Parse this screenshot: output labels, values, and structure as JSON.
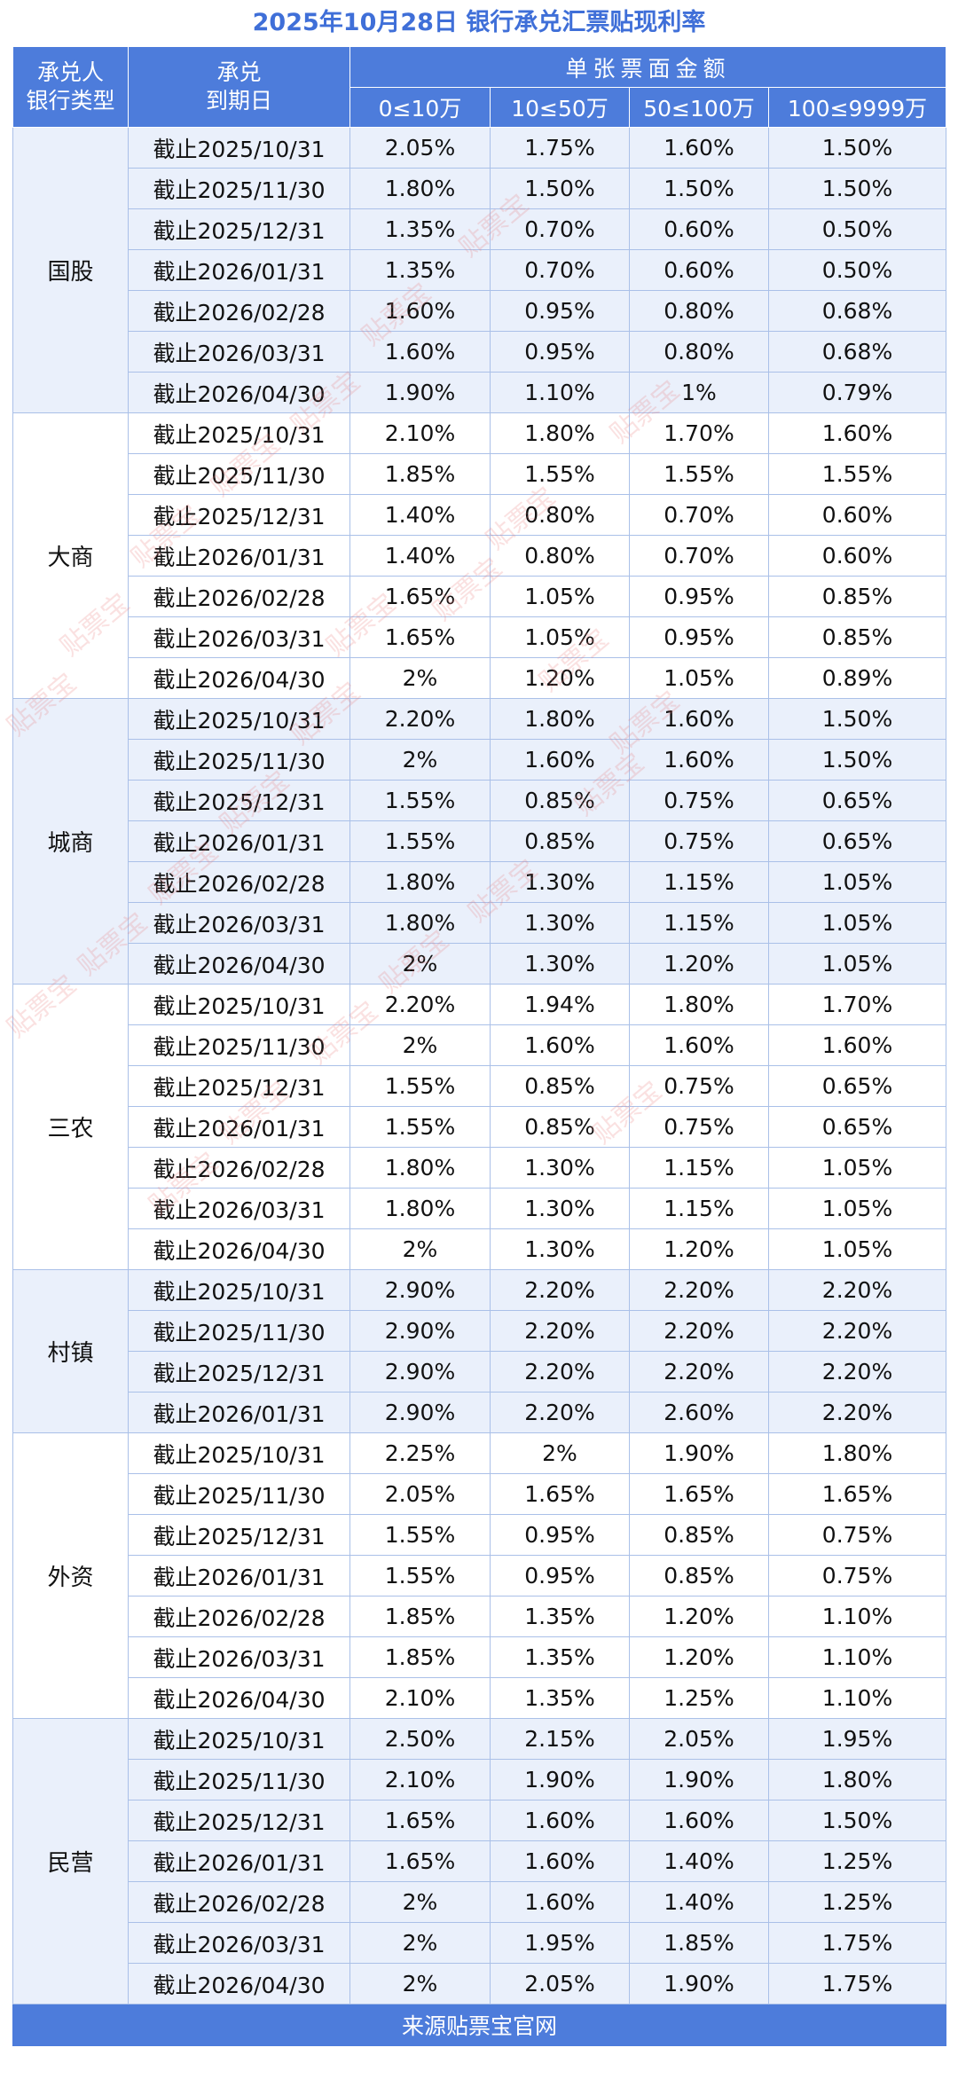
{
  "title": "2025年10月28日 银行承兑汇票贴现利率",
  "header": {
    "col_bank": "承兑人\n银行类型",
    "col_bank_line1": "承兑人",
    "col_bank_line2": "银行类型",
    "col_maturity_line1": "承兑",
    "col_maturity_line2": "到期日",
    "amount_group": "单张票面金额",
    "amount_cols": [
      "0≤10万",
      "10≤50万",
      "50≤100万",
      "100≤9999万"
    ]
  },
  "groups": [
    {
      "bank": "国股",
      "rows": [
        {
          "date": "截止2025/10/31",
          "rates": [
            "2.05%",
            "1.75%",
            "1.60%",
            "1.50%"
          ]
        },
        {
          "date": "截止2025/11/30",
          "rates": [
            "1.80%",
            "1.50%",
            "1.50%",
            "1.50%"
          ]
        },
        {
          "date": "截止2025/12/31",
          "rates": [
            "1.35%",
            "0.70%",
            "0.60%",
            "0.50%"
          ]
        },
        {
          "date": "截止2026/01/31",
          "rates": [
            "1.35%",
            "0.70%",
            "0.60%",
            "0.50%"
          ]
        },
        {
          "date": "截止2026/02/28",
          "rates": [
            "1.60%",
            "0.95%",
            "0.80%",
            "0.68%"
          ]
        },
        {
          "date": "截止2026/03/31",
          "rates": [
            "1.60%",
            "0.95%",
            "0.80%",
            "0.68%"
          ]
        },
        {
          "date": "截止2026/04/30",
          "rates": [
            "1.90%",
            "1.10%",
            "1%",
            "0.79%"
          ]
        }
      ]
    },
    {
      "bank": "大商",
      "rows": [
        {
          "date": "截止2025/10/31",
          "rates": [
            "2.10%",
            "1.80%",
            "1.70%",
            "1.60%"
          ]
        },
        {
          "date": "截止2025/11/30",
          "rates": [
            "1.85%",
            "1.55%",
            "1.55%",
            "1.55%"
          ]
        },
        {
          "date": "截止2025/12/31",
          "rates": [
            "1.40%",
            "0.80%",
            "0.70%",
            "0.60%"
          ]
        },
        {
          "date": "截止2026/01/31",
          "rates": [
            "1.40%",
            "0.80%",
            "0.70%",
            "0.60%"
          ]
        },
        {
          "date": "截止2026/02/28",
          "rates": [
            "1.65%",
            "1.05%",
            "0.95%",
            "0.85%"
          ]
        },
        {
          "date": "截止2026/03/31",
          "rates": [
            "1.65%",
            "1.05%",
            "0.95%",
            "0.85%"
          ]
        },
        {
          "date": "截止2026/04/30",
          "rates": [
            "2%",
            "1.20%",
            "1.05%",
            "0.89%"
          ]
        }
      ]
    },
    {
      "bank": "城商",
      "rows": [
        {
          "date": "截止2025/10/31",
          "rates": [
            "2.20%",
            "1.80%",
            "1.60%",
            "1.50%"
          ]
        },
        {
          "date": "截止2025/11/30",
          "rates": [
            "2%",
            "1.60%",
            "1.60%",
            "1.50%"
          ]
        },
        {
          "date": "截止2025/12/31",
          "rates": [
            "1.55%",
            "0.85%",
            "0.75%",
            "0.65%"
          ]
        },
        {
          "date": "截止2026/01/31",
          "rates": [
            "1.55%",
            "0.85%",
            "0.75%",
            "0.65%"
          ]
        },
        {
          "date": "截止2026/02/28",
          "rates": [
            "1.80%",
            "1.30%",
            "1.15%",
            "1.05%"
          ]
        },
        {
          "date": "截止2026/03/31",
          "rates": [
            "1.80%",
            "1.30%",
            "1.15%",
            "1.05%"
          ]
        },
        {
          "date": "截止2026/04/30",
          "rates": [
            "2%",
            "1.30%",
            "1.20%",
            "1.05%"
          ]
        }
      ]
    },
    {
      "bank": "三农",
      "rows": [
        {
          "date": "截止2025/10/31",
          "rates": [
            "2.20%",
            "1.94%",
            "1.80%",
            "1.70%"
          ]
        },
        {
          "date": "截止2025/11/30",
          "rates": [
            "2%",
            "1.60%",
            "1.60%",
            "1.60%"
          ]
        },
        {
          "date": "截止2025/12/31",
          "rates": [
            "1.55%",
            "0.85%",
            "0.75%",
            "0.65%"
          ]
        },
        {
          "date": "截止2026/01/31",
          "rates": [
            "1.55%",
            "0.85%",
            "0.75%",
            "0.65%"
          ]
        },
        {
          "date": "截止2026/02/28",
          "rates": [
            "1.80%",
            "1.30%",
            "1.15%",
            "1.05%"
          ]
        },
        {
          "date": "截止2026/03/31",
          "rates": [
            "1.80%",
            "1.30%",
            "1.15%",
            "1.05%"
          ]
        },
        {
          "date": "截止2026/04/30",
          "rates": [
            "2%",
            "1.30%",
            "1.20%",
            "1.05%"
          ]
        }
      ]
    },
    {
      "bank": "村镇",
      "rows": [
        {
          "date": "截止2025/10/31",
          "rates": [
            "2.90%",
            "2.20%",
            "2.20%",
            "2.20%"
          ]
        },
        {
          "date": "截止2025/11/30",
          "rates": [
            "2.90%",
            "2.20%",
            "2.20%",
            "2.20%"
          ]
        },
        {
          "date": "截止2025/12/31",
          "rates": [
            "2.90%",
            "2.20%",
            "2.20%",
            "2.20%"
          ]
        },
        {
          "date": "截止2026/01/31",
          "rates": [
            "2.90%",
            "2.20%",
            "2.60%",
            "2.20%"
          ]
        }
      ]
    },
    {
      "bank": "外资",
      "rows": [
        {
          "date": "截止2025/10/31",
          "rates": [
            "2.25%",
            "2%",
            "1.90%",
            "1.80%"
          ]
        },
        {
          "date": "截止2025/11/30",
          "rates": [
            "2.05%",
            "1.65%",
            "1.65%",
            "1.65%"
          ]
        },
        {
          "date": "截止2025/12/31",
          "rates": [
            "1.55%",
            "0.95%",
            "0.85%",
            "0.75%"
          ]
        },
        {
          "date": "截止2026/01/31",
          "rates": [
            "1.55%",
            "0.95%",
            "0.85%",
            "0.75%"
          ]
        },
        {
          "date": "截止2026/02/28",
          "rates": [
            "1.85%",
            "1.35%",
            "1.20%",
            "1.10%"
          ]
        },
        {
          "date": "截止2026/03/31",
          "rates": [
            "1.85%",
            "1.35%",
            "1.20%",
            "1.10%"
          ]
        },
        {
          "date": "截止2026/04/30",
          "rates": [
            "2.10%",
            "1.35%",
            "1.25%",
            "1.10%"
          ]
        }
      ]
    },
    {
      "bank": "民营",
      "rows": [
        {
          "date": "截止2025/10/31",
          "rates": [
            "2.50%",
            "2.15%",
            "2.05%",
            "1.95%"
          ]
        },
        {
          "date": "截止2025/11/30",
          "rates": [
            "2.10%",
            "1.90%",
            "1.90%",
            "1.80%"
          ]
        },
        {
          "date": "截止2025/12/31",
          "rates": [
            "1.65%",
            "1.60%",
            "1.60%",
            "1.50%"
          ]
        },
        {
          "date": "截止2026/01/31",
          "rates": [
            "1.65%",
            "1.60%",
            "1.40%",
            "1.25%"
          ]
        },
        {
          "date": "截止2026/02/28",
          "rates": [
            "2%",
            "1.60%",
            "1.40%",
            "1.25%"
          ]
        },
        {
          "date": "截止2026/03/31",
          "rates": [
            "2%",
            "1.95%",
            "1.85%",
            "1.75%"
          ]
        },
        {
          "date": "截止2026/04/30",
          "rates": [
            "2%",
            "2.05%",
            "1.90%",
            "1.75%"
          ]
        }
      ]
    }
  ],
  "footer": "来源贴票宝官网",
  "watermark": "贴票宝"
}
